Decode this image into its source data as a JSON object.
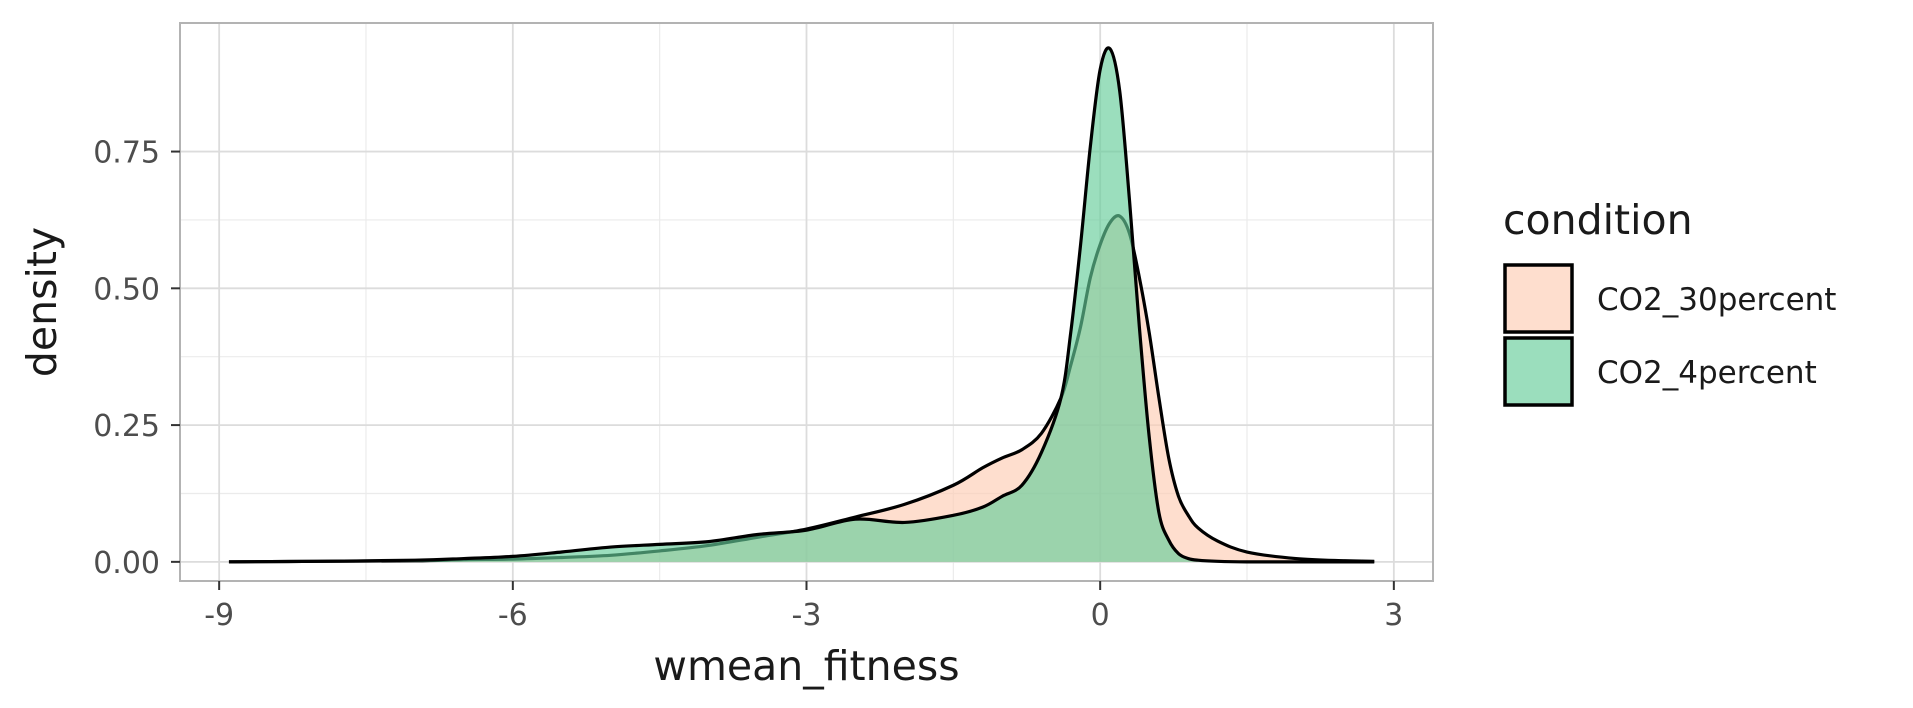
{
  "chart_data": {
    "type": "area",
    "xlabel": "wmean_fitness",
    "ylabel": "density",
    "xlim": [
      -9.4,
      3.4
    ],
    "ylim": [
      -0.035,
      0.985
    ],
    "x_ticks": [
      -9,
      -6,
      -3,
      0,
      3
    ],
    "x_tick_labels": [
      "-9",
      "-6",
      "-3",
      "0",
      "3"
    ],
    "y_ticks": [
      0,
      0.25,
      0.5,
      0.75
    ],
    "y_tick_labels": [
      "0.00",
      "0.25",
      "0.50",
      "0.75"
    ],
    "grid": true,
    "legend": {
      "title": "condition",
      "position": "right"
    },
    "series": [
      {
        "name": "CO2_30percent",
        "fill": "#fdcdb4",
        "x": [
          -8.9,
          -8.0,
          -7.0,
          -6.5,
          -6.0,
          -5.5,
          -5.0,
          -4.5,
          -4.0,
          -3.5,
          -3.0,
          -2.5,
          -2.0,
          -1.5,
          -1.2,
          -1.0,
          -0.8,
          -0.6,
          -0.4,
          -0.3,
          -0.2,
          -0.1,
          0.0,
          0.1,
          0.2,
          0.3,
          0.4,
          0.5,
          0.6,
          0.7,
          0.8,
          0.9,
          1.0,
          1.2,
          1.5,
          2.0,
          2.5,
          2.8
        ],
        "y": [
          0.0,
          0.001,
          0.002,
          0.004,
          0.005,
          0.008,
          0.012,
          0.02,
          0.03,
          0.045,
          0.06,
          0.082,
          0.105,
          0.14,
          0.172,
          0.19,
          0.205,
          0.235,
          0.3,
          0.36,
          0.43,
          0.52,
          0.58,
          0.62,
          0.632,
          0.6,
          0.52,
          0.42,
          0.3,
          0.19,
          0.12,
          0.085,
          0.062,
          0.038,
          0.018,
          0.006,
          0.002,
          0.001
        ]
      },
      {
        "name": "CO2_4percent",
        "fill": "#66cc99",
        "x": [
          -8.9,
          -8.0,
          -7.0,
          -6.5,
          -6.0,
          -5.5,
          -5.0,
          -4.5,
          -4.0,
          -3.5,
          -3.0,
          -2.5,
          -2.0,
          -1.5,
          -1.2,
          -1.0,
          -0.8,
          -0.6,
          -0.4,
          -0.3,
          -0.2,
          -0.1,
          0.0,
          0.1,
          0.2,
          0.3,
          0.4,
          0.5,
          0.6,
          0.7,
          0.8,
          0.9,
          1.0,
          1.2,
          1.5,
          2.0,
          2.5,
          2.8
        ],
        "y": [
          0.0,
          0.001,
          0.003,
          0.006,
          0.01,
          0.018,
          0.027,
          0.032,
          0.037,
          0.05,
          0.058,
          0.078,
          0.072,
          0.085,
          0.1,
          0.12,
          0.14,
          0.2,
          0.3,
          0.42,
          0.58,
          0.76,
          0.9,
          0.938,
          0.86,
          0.66,
          0.43,
          0.23,
          0.09,
          0.04,
          0.015,
          0.006,
          0.003,
          0.001,
          0.0,
          0.0,
          0.0,
          0.0
        ]
      }
    ]
  }
}
